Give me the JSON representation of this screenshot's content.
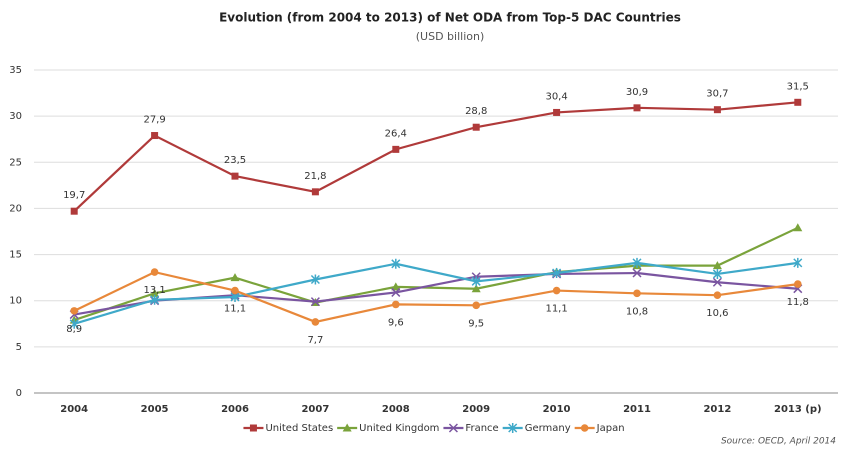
{
  "chart_data": {
    "type": "line",
    "title": "Evolution (from 2004 to 2013)  of Net ODA from Top-5 DAC Countries",
    "subtitle": "(USD billion)",
    "source": "Source: OECD, April 2014",
    "categories": [
      "2004",
      "2005",
      "2006",
      "2007",
      "2008",
      "2009",
      "2010",
      "2011",
      "2012",
      "2013 (p)"
    ],
    "ylim": [
      0,
      35
    ],
    "yticks": [
      0,
      5,
      10,
      15,
      20,
      25,
      30,
      35
    ],
    "grid": true,
    "legend": "bottom",
    "series": [
      {
        "name": "United States",
        "color": "#b03a3a",
        "marker": "square",
        "values": [
          19.7,
          27.9,
          23.5,
          21.8,
          26.4,
          28.8,
          30.4,
          30.9,
          30.7,
          31.5
        ],
        "value_labels": [
          "19,7",
          "27,9",
          "23,5",
          "21,8",
          "26,4",
          "28,8",
          "30,4",
          "30,9",
          "30,7",
          "31,5"
        ]
      },
      {
        "name": "United Kingdom",
        "color": "#7aa33b",
        "marker": "triangle",
        "values": [
          7.9,
          10.8,
          12.5,
          9.8,
          11.5,
          11.3,
          13.1,
          13.8,
          13.8,
          17.9
        ]
      },
      {
        "name": "France",
        "color": "#7a55a0",
        "marker": "x",
        "values": [
          8.5,
          10.0,
          10.6,
          9.9,
          10.9,
          12.6,
          12.9,
          13.0,
          12.0,
          11.3
        ]
      },
      {
        "name": "Germany",
        "color": "#3fa9c9",
        "marker": "star",
        "values": [
          7.5,
          10.1,
          10.4,
          12.3,
          14.0,
          12.1,
          13.0,
          14.1,
          12.9,
          14.1
        ]
      },
      {
        "name": "Japan",
        "color": "#e8883a",
        "marker": "circle",
        "values": [
          8.9,
          13.1,
          11.1,
          7.7,
          9.6,
          9.5,
          11.1,
          10.8,
          10.6,
          11.8
        ],
        "value_labels": [
          "8,9",
          "13,1",
          "11,1",
          "7,7",
          "9,6",
          "9,5",
          "11,1",
          "10,8",
          "10,6",
          "11,8"
        ]
      }
    ]
  }
}
